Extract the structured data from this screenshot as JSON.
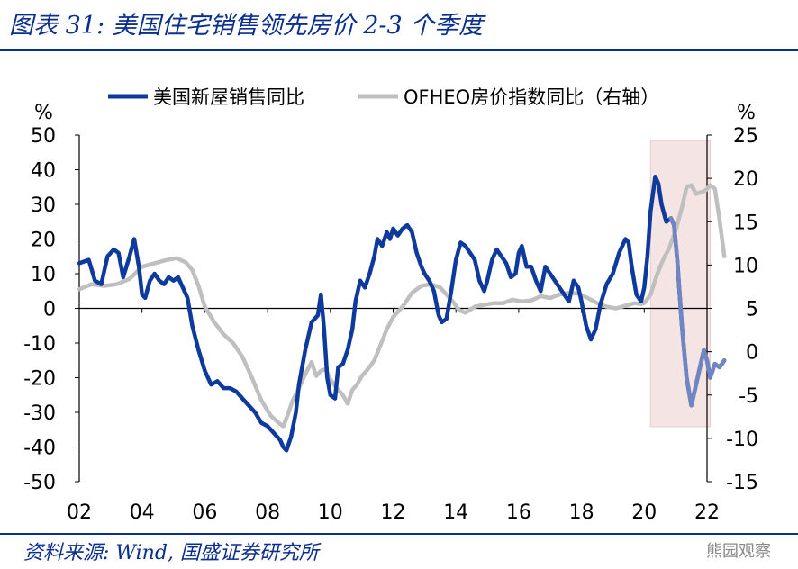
{
  "header": {
    "title": "图表 31:  美国住宅销售领先房价 2-3 个季度"
  },
  "footer": {
    "source": "资料来源:  Wind,  国盛证券研究所",
    "watermark": "熊园观察"
  },
  "chart_data": {
    "type": "line",
    "title": "图表 31:  美国住宅销售领先房价 2-3 个季度",
    "x_ticks": [
      "02",
      "04",
      "06",
      "08",
      "10",
      "12",
      "14",
      "16",
      "18",
      "20",
      "22"
    ],
    "x_range": [
      2002.0,
      2022.0
    ],
    "y_left": {
      "unit": "%",
      "range": [
        -50,
        50
      ],
      "ticks": [
        "50",
        "40",
        "30",
        "20",
        "10",
        "0",
        "-10",
        "-20",
        "-30",
        "-40",
        "-50"
      ]
    },
    "y_right": {
      "unit": "%",
      "range": [
        -15,
        25
      ],
      "ticks": [
        "25",
        "20",
        "15",
        "10",
        "5",
        "0",
        "-5",
        "-10",
        "-15"
      ]
    },
    "highlight_region": {
      "from": 2020.2,
      "to": 2022.1,
      "color": "#f4e4e4"
    },
    "series": [
      {
        "name": "美国新屋销售同比",
        "axis": "left",
        "color": "#0d3a9c",
        "points": [
          [
            2002.0,
            13
          ],
          [
            2002.3,
            14
          ],
          [
            2002.5,
            8
          ],
          [
            2002.7,
            7
          ],
          [
            2002.9,
            15
          ],
          [
            2003.1,
            17
          ],
          [
            2003.25,
            16
          ],
          [
            2003.4,
            9
          ],
          [
            2003.6,
            15
          ],
          [
            2003.75,
            20
          ],
          [
            2003.9,
            12
          ],
          [
            2004.0,
            4
          ],
          [
            2004.1,
            3
          ],
          [
            2004.25,
            8
          ],
          [
            2004.4,
            10
          ],
          [
            2004.55,
            8
          ],
          [
            2004.7,
            7
          ],
          [
            2004.85,
            9
          ],
          [
            2005.0,
            8
          ],
          [
            2005.15,
            9
          ],
          [
            2005.3,
            6
          ],
          [
            2005.45,
            3
          ],
          [
            2005.6,
            -5
          ],
          [
            2005.8,
            -12
          ],
          [
            2006.0,
            -18
          ],
          [
            2006.2,
            -22
          ],
          [
            2006.4,
            -21
          ],
          [
            2006.6,
            -23
          ],
          [
            2006.8,
            -23
          ],
          [
            2007.0,
            -24
          ],
          [
            2007.2,
            -26
          ],
          [
            2007.4,
            -28
          ],
          [
            2007.6,
            -30
          ],
          [
            2007.8,
            -33
          ],
          [
            2008.0,
            -34
          ],
          [
            2008.2,
            -36
          ],
          [
            2008.4,
            -38
          ],
          [
            2008.5,
            -40
          ],
          [
            2008.6,
            -41
          ],
          [
            2008.75,
            -37
          ],
          [
            2008.9,
            -30
          ],
          [
            2009.0,
            -22
          ],
          [
            2009.2,
            -12
          ],
          [
            2009.4,
            -4
          ],
          [
            2009.6,
            -2
          ],
          [
            2009.7,
            4
          ],
          [
            2009.8,
            -6
          ],
          [
            2009.9,
            -20
          ],
          [
            2010.0,
            -25
          ],
          [
            2010.15,
            -26
          ],
          [
            2010.25,
            -17
          ],
          [
            2010.4,
            -16
          ],
          [
            2010.55,
            -12
          ],
          [
            2010.7,
            -6
          ],
          [
            2010.8,
            2
          ],
          [
            2010.95,
            8
          ],
          [
            2011.1,
            6
          ],
          [
            2011.25,
            10
          ],
          [
            2011.4,
            15
          ],
          [
            2011.5,
            20
          ],
          [
            2011.65,
            18
          ],
          [
            2011.8,
            22
          ],
          [
            2011.9,
            20
          ],
          [
            2012.0,
            23
          ],
          [
            2012.15,
            21
          ],
          [
            2012.3,
            23
          ],
          [
            2012.45,
            24
          ],
          [
            2012.6,
            22
          ],
          [
            2012.75,
            16
          ],
          [
            2012.9,
            12
          ],
          [
            2013.0,
            10
          ],
          [
            2013.15,
            8
          ],
          [
            2013.3,
            5
          ],
          [
            2013.45,
            -2
          ],
          [
            2013.55,
            -4
          ],
          [
            2013.7,
            -3
          ],
          [
            2013.85,
            5
          ],
          [
            2014.0,
            14
          ],
          [
            2014.15,
            19
          ],
          [
            2014.3,
            18
          ],
          [
            2014.45,
            16
          ],
          [
            2014.6,
            14
          ],
          [
            2014.75,
            8
          ],
          [
            2014.9,
            5
          ],
          [
            2015.0,
            8
          ],
          [
            2015.15,
            14
          ],
          [
            2015.3,
            17
          ],
          [
            2015.45,
            15
          ],
          [
            2015.6,
            13
          ],
          [
            2015.75,
            9
          ],
          [
            2015.9,
            10
          ],
          [
            2016.0,
            16
          ],
          [
            2016.1,
            18
          ],
          [
            2016.25,
            12
          ],
          [
            2016.4,
            12
          ],
          [
            2016.55,
            8
          ],
          [
            2016.7,
            5
          ],
          [
            2016.85,
            12
          ],
          [
            2017.0,
            10
          ],
          [
            2017.15,
            8
          ],
          [
            2017.3,
            6
          ],
          [
            2017.45,
            4
          ],
          [
            2017.6,
            2
          ],
          [
            2017.75,
            8
          ],
          [
            2017.9,
            6
          ],
          [
            2018.0,
            2
          ],
          [
            2018.15,
            -5
          ],
          [
            2018.3,
            -9
          ],
          [
            2018.45,
            -6
          ],
          [
            2018.6,
            1
          ],
          [
            2018.8,
            7
          ],
          [
            2019.0,
            10
          ],
          [
            2019.2,
            16
          ],
          [
            2019.4,
            20
          ],
          [
            2019.5,
            19
          ],
          [
            2019.6,
            12
          ],
          [
            2019.75,
            4
          ],
          [
            2019.9,
            2
          ],
          [
            2020.0,
            6
          ],
          [
            2020.1,
            15
          ],
          [
            2020.2,
            28
          ],
          [
            2020.35,
            38
          ],
          [
            2020.45,
            36
          ],
          [
            2020.55,
            30
          ],
          [
            2020.7,
            25
          ],
          [
            2020.85,
            26
          ],
          [
            2020.95,
            24
          ],
          [
            2021.05,
            14
          ],
          [
            2021.2,
            -5
          ],
          [
            2021.35,
            -20
          ],
          [
            2021.5,
            -28
          ],
          [
            2021.65,
            -22
          ],
          [
            2021.8,
            -16
          ],
          [
            2021.9,
            -12
          ],
          [
            2022.0,
            -15
          ],
          [
            2022.1,
            -20
          ],
          [
            2022.25,
            -16
          ],
          [
            2022.4,
            -17
          ],
          [
            2022.55,
            -15
          ]
        ]
      },
      {
        "name": "OFHEO房价指数同比（右轴）",
        "axis": "right",
        "color": "#bfbfbf",
        "points": [
          [
            2002.0,
            7.2
          ],
          [
            2002.4,
            7.8
          ],
          [
            2002.8,
            7.6
          ],
          [
            2003.2,
            7.8
          ],
          [
            2003.6,
            8.4
          ],
          [
            2004.0,
            9.8
          ],
          [
            2004.4,
            10.2
          ],
          [
            2004.8,
            10.6
          ],
          [
            2005.1,
            10.8
          ],
          [
            2005.4,
            10.3
          ],
          [
            2005.6,
            9.4
          ],
          [
            2005.8,
            7.6
          ],
          [
            2006.0,
            5.2
          ],
          [
            2006.3,
            3.4
          ],
          [
            2006.6,
            2.0
          ],
          [
            2006.9,
            1.0
          ],
          [
            2007.2,
            -0.6
          ],
          [
            2007.5,
            -3.0
          ],
          [
            2007.8,
            -5.6
          ],
          [
            2008.1,
            -7.4
          ],
          [
            2008.35,
            -8.2
          ],
          [
            2008.5,
            -8.6
          ],
          [
            2008.65,
            -7.2
          ],
          [
            2008.8,
            -5.6
          ],
          [
            2009.0,
            -4.2
          ],
          [
            2009.2,
            -2.6
          ],
          [
            2009.4,
            -1.2
          ],
          [
            2009.55,
            -2.8
          ],
          [
            2009.7,
            -2.2
          ],
          [
            2009.85,
            -2.0
          ],
          [
            2010.0,
            -3.2
          ],
          [
            2010.2,
            -4.2
          ],
          [
            2010.4,
            -5.0
          ],
          [
            2010.55,
            -6.0
          ],
          [
            2010.7,
            -4.4
          ],
          [
            2010.85,
            -3.8
          ],
          [
            2011.0,
            -2.8
          ],
          [
            2011.2,
            -2.0
          ],
          [
            2011.4,
            -1.0
          ],
          [
            2011.6,
            0.8
          ],
          [
            2011.8,
            2.6
          ],
          [
            2012.0,
            4.0
          ],
          [
            2012.3,
            5.2
          ],
          [
            2012.6,
            6.8
          ],
          [
            2012.9,
            7.6
          ],
          [
            2013.2,
            7.8
          ],
          [
            2013.5,
            7.4
          ],
          [
            2013.7,
            6.6
          ],
          [
            2013.9,
            5.8
          ],
          [
            2014.1,
            4.8
          ],
          [
            2014.3,
            4.5
          ],
          [
            2014.6,
            5.2
          ],
          [
            2014.9,
            5.4
          ],
          [
            2015.2,
            5.6
          ],
          [
            2015.5,
            5.6
          ],
          [
            2015.8,
            6.0
          ],
          [
            2016.1,
            5.8
          ],
          [
            2016.4,
            5.9
          ],
          [
            2016.7,
            6.4
          ],
          [
            2017.0,
            6.2
          ],
          [
            2017.3,
            6.6
          ],
          [
            2017.6,
            6.8
          ],
          [
            2017.9,
            6.7
          ],
          [
            2018.2,
            6.2
          ],
          [
            2018.5,
            5.6
          ],
          [
            2018.8,
            5.2
          ],
          [
            2019.1,
            5.0
          ],
          [
            2019.4,
            5.3
          ],
          [
            2019.7,
            5.6
          ],
          [
            2019.9,
            5.5
          ],
          [
            2020.0,
            5.6
          ],
          [
            2020.2,
            6.6
          ],
          [
            2020.4,
            8.8
          ],
          [
            2020.6,
            10.6
          ],
          [
            2020.8,
            12.0
          ],
          [
            2021.0,
            14.0
          ],
          [
            2021.2,
            16.6
          ],
          [
            2021.35,
            19.0
          ],
          [
            2021.5,
            19.2
          ],
          [
            2021.65,
            18.2
          ],
          [
            2021.8,
            18.4
          ],
          [
            2021.95,
            18.6
          ],
          [
            2022.1,
            19.2
          ],
          [
            2022.25,
            18.8
          ],
          [
            2022.4,
            15.2
          ],
          [
            2022.55,
            11.0
          ]
        ]
      }
    ],
    "legend": {
      "position": "top",
      "entries": [
        "美国新屋销售同比",
        "OFHEO房价指数同比（右轴）"
      ]
    }
  }
}
